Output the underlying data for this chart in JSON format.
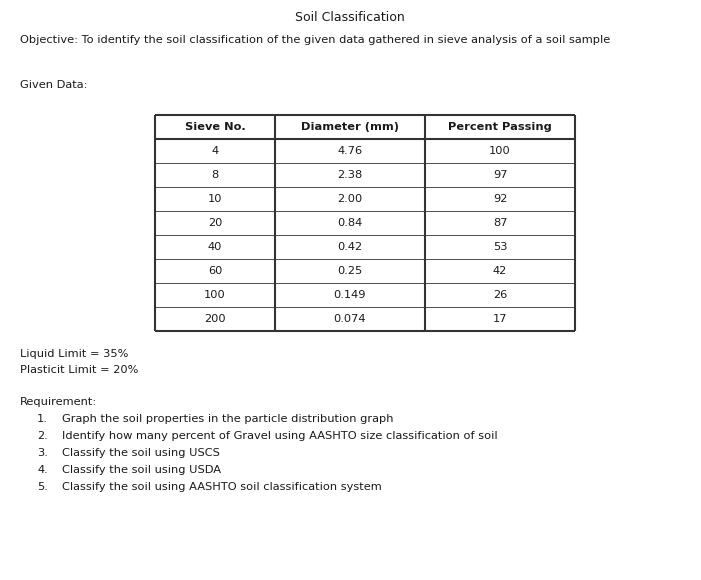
{
  "title": "Soil Classification",
  "objective": "Objective: To identify the soil classification of the given data gathered in sieve analysis of a soil sample",
  "given_data_label": "Given Data:",
  "table_headers": [
    "Sieve No.",
    "Diameter (mm)",
    "Percent Passing"
  ],
  "table_rows": [
    [
      "4",
      "4.76",
      "100"
    ],
    [
      "8",
      "2.38",
      "97"
    ],
    [
      "10",
      "2.00",
      "92"
    ],
    [
      "20",
      "0.84",
      "87"
    ],
    [
      "40",
      "0.42",
      "53"
    ],
    [
      "60",
      "0.25",
      "42"
    ],
    [
      "100",
      "0.149",
      "26"
    ],
    [
      "200",
      "0.074",
      "17"
    ]
  ],
  "liquid_limit": "Liquid Limit = 35%",
  "plasticit_limit": "Plasticit Limit = 20%",
  "requirement_label": "Requirement:",
  "requirements": [
    "Graph the soil properties in the particle distribution graph",
    "Identify how many percent of Gravel using AASHTO size classification of soil",
    "Classify the soil using USCS",
    "Classify the soil using USDA",
    "Classify the soil using AASHTO soil classification system"
  ],
  "bg_color": "#ffffff",
  "text_color": "#1a1a1a",
  "title_fontsize": 9,
  "body_fontsize": 8.2,
  "table_fontsize": 8.2
}
